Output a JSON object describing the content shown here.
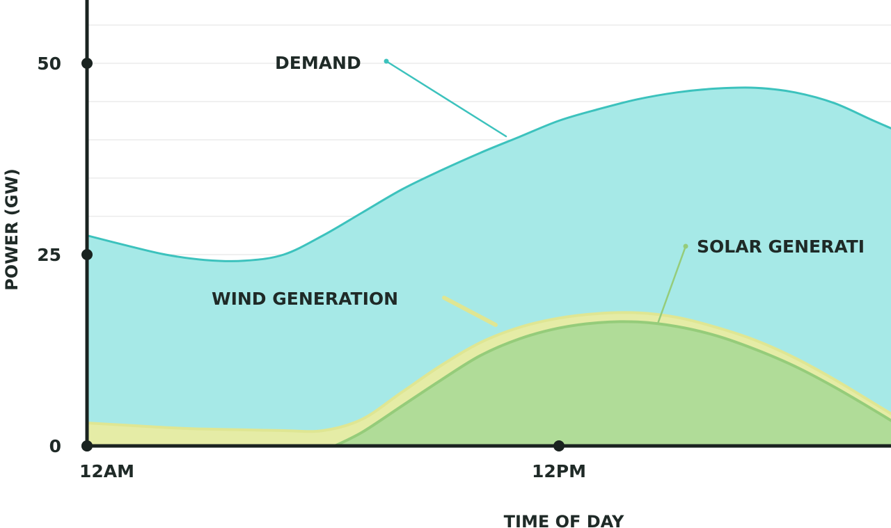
{
  "chart_data": {
    "type": "area",
    "xlabel": "TIME OF DAY",
    "ylabel": "POWER (GW)",
    "x_ticks": [
      "12AM",
      "12PM"
    ],
    "y_ticks": [
      "0",
      "25",
      "50"
    ],
    "ylim": [
      0,
      55
    ],
    "grid": true,
    "series": [
      {
        "name": "DEMAND",
        "color": "#a6e9e7",
        "line_color": "#3cc2bd",
        "x": [
          0,
          1,
          2,
          3,
          4,
          5,
          6,
          7,
          8,
          9,
          10,
          11,
          12,
          13,
          14,
          15,
          16,
          17,
          18,
          19,
          20,
          21,
          21.5
        ],
        "values": [
          27.5,
          26.2,
          25.0,
          24.3,
          24.2,
          25.0,
          27.5,
          30.5,
          33.5,
          36.0,
          38.3,
          40.4,
          42.5,
          44.0,
          45.3,
          46.2,
          46.7,
          46.8,
          46.2,
          44.8,
          42.5,
          40.3,
          39.3
        ]
      },
      {
        "name": "WIND GENERATION",
        "color": "#e5eca6",
        "line_color": "#dfe693",
        "x": [
          0,
          1,
          2,
          3,
          4,
          5,
          6,
          7,
          8,
          9,
          10,
          11,
          12,
          13,
          14,
          15,
          16,
          17,
          18,
          19,
          20,
          21,
          21.5
        ],
        "values": [
          3.0,
          2.7,
          2.4,
          2.2,
          2.1,
          2.0,
          2.0,
          3.5,
          7.0,
          10.5,
          13.5,
          15.5,
          16.7,
          17.3,
          17.4,
          16.8,
          15.5,
          13.8,
          11.5,
          8.7,
          5.6,
          2.5,
          1.2
        ]
      },
      {
        "name": "SOLAR GENERATION",
        "color": "#b0dc98",
        "line_color": "#95cc7a",
        "x": [
          6.3,
          7,
          8,
          9,
          10,
          11,
          12,
          13,
          14,
          15,
          16,
          17,
          18,
          19,
          20,
          21,
          21.5
        ],
        "values": [
          0,
          1.8,
          5.2,
          8.6,
          11.8,
          14.0,
          15.4,
          16.1,
          16.2,
          15.6,
          14.4,
          12.6,
          10.4,
          7.7,
          4.7,
          1.6,
          0.3
        ]
      }
    ],
    "annotations": [
      "DEMAND",
      "WIND GENERATION",
      "SOLAR GENERATI"
    ]
  }
}
